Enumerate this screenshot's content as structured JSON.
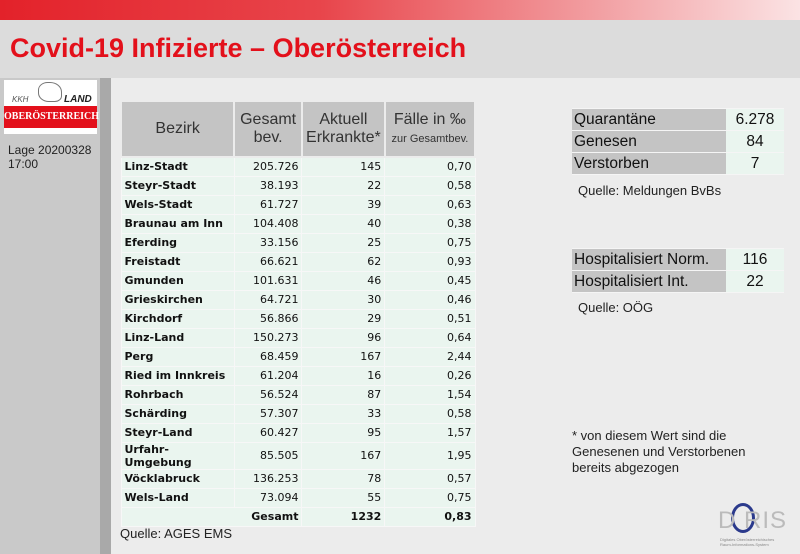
{
  "header": {
    "title": "Covid-19 Infizierte – Oberösterreich"
  },
  "logo": {
    "kkh": "KKH",
    "land": "LAND",
    "region": "OBERÖSTERREICH"
  },
  "sidebar": {
    "lage_line1": "Lage 20200328",
    "lage_line2": "17:00"
  },
  "table": {
    "headers": {
      "bezirk": "Bezirk",
      "gesamt1": "Gesamt",
      "gesamt2": "bev.",
      "aktuell1": "Aktuell",
      "aktuell2": "Erkrankte*",
      "faelle1": "Fälle in ‰",
      "faelle2": "zur Gesamtbev."
    },
    "rows": [
      [
        "Linz-Stadt",
        "205.726",
        "145",
        "0,70"
      ],
      [
        "Steyr-Stadt",
        "38.193",
        "22",
        "0,58"
      ],
      [
        "Wels-Stadt",
        "61.727",
        "39",
        "0,63"
      ],
      [
        "Braunau am Inn",
        "104.408",
        "40",
        "0,38"
      ],
      [
        "Eferding",
        "33.156",
        "25",
        "0,75"
      ],
      [
        "Freistadt",
        "66.621",
        "62",
        "0,93"
      ],
      [
        "Gmunden",
        "101.631",
        "46",
        "0,45"
      ],
      [
        "Grieskirchen",
        "64.721",
        "30",
        "0,46"
      ],
      [
        "Kirchdorf",
        "56.866",
        "29",
        "0,51"
      ],
      [
        "Linz-Land",
        "150.273",
        "96",
        "0,64"
      ],
      [
        "Perg",
        "68.459",
        "167",
        "2,44"
      ],
      [
        "Ried im Innkreis",
        "61.204",
        "16",
        "0,26"
      ],
      [
        "Rohrbach",
        "56.524",
        "87",
        "1,54"
      ],
      [
        "Schärding",
        "57.307",
        "33",
        "0,58"
      ],
      [
        "Steyr-Land",
        "60.427",
        "95",
        "1,57"
      ],
      [
        "Urfahr-Umgebung",
        "85.505",
        "167",
        "1,95"
      ],
      [
        "Vöcklabruck",
        "136.253",
        "78",
        "0,57"
      ],
      [
        "Wels-Land",
        "73.094",
        "55",
        "0,75"
      ]
    ],
    "total": {
      "label": "Gesamt",
      "aktuell": "1232",
      "faelle": "0,83"
    },
    "source": "Quelle: AGES EMS"
  },
  "status": {
    "rows": [
      [
        "Quarantäne",
        "6.278"
      ],
      [
        "Genesen",
        "84"
      ],
      [
        "Verstorben",
        "7"
      ]
    ],
    "source": "Quelle: Meldungen BvBs"
  },
  "hospital": {
    "rows": [
      [
        "Hospitalisiert Norm.",
        "116"
      ],
      [
        "Hospitalisiert Int.",
        "22"
      ]
    ],
    "source": "Quelle: OÖG"
  },
  "note": "* von diesem Wert sind die Genesenen und Verstorbenen bereits abgezogen",
  "doris": {
    "logo": "DORIS"
  }
}
